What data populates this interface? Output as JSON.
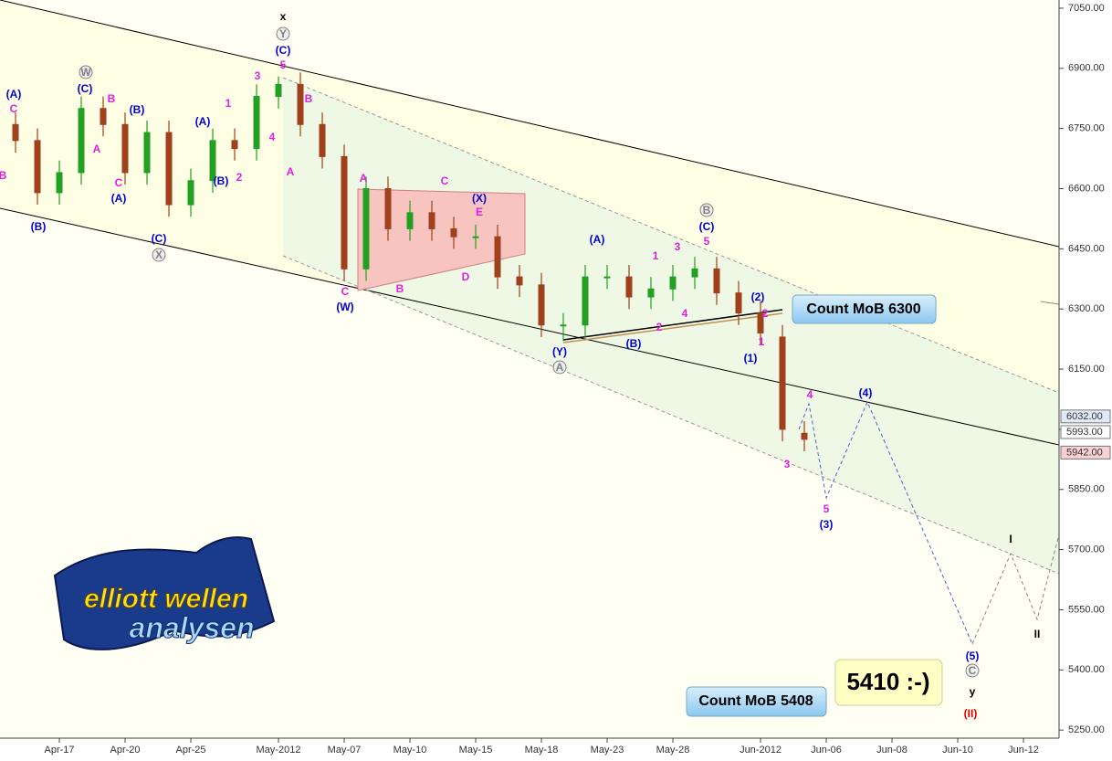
{
  "chart_data": {
    "type": "candlestick",
    "categories": [
      null,
      null,
      "Apr-17",
      null,
      null,
      "Apr-20",
      null,
      null,
      "Apr-25",
      null,
      null,
      null,
      "May-2012",
      null,
      null,
      "May-07",
      null,
      null,
      "May-10",
      null,
      null,
      "May-15",
      null,
      null,
      "May-18",
      null,
      null,
      "May-23",
      null,
      null,
      "May-28",
      null,
      null,
      null,
      "Jun-2012",
      null,
      null,
      "Jun-06",
      null,
      null,
      "Jun-08",
      null,
      null,
      "Jun-10",
      null,
      null,
      "Jun-12",
      null
    ],
    "open": [
      6760,
      6720,
      6590,
      6640,
      6800,
      6760,
      6640,
      6740,
      6560,
      6620,
      6720,
      6700,
      6830,
      6860,
      6760,
      6680,
      6400,
      6600,
      6500,
      6540,
      6500,
      6480,
      6480,
      6380,
      6360,
      6260,
      6260,
      6380,
      6380,
      6330,
      6350,
      6380,
      6400,
      6340,
      6290,
      6230,
      5990,
      null,
      null,
      null,
      null,
      null,
      null,
      null,
      null,
      null,
      null,
      null
    ],
    "high": [
      6790,
      6750,
      6670,
      6830,
      6830,
      6790,
      6770,
      6770,
      6650,
      6750,
      6750,
      6860,
      6880,
      6890,
      6790,
      6710,
      6630,
      6630,
      6570,
      6570,
      6530,
      6510,
      6510,
      6410,
      6390,
      6290,
      6410,
      6410,
      6410,
      6380,
      6410,
      6430,
      6430,
      6370,
      6320,
      6260,
      6020,
      null,
      null,
      null,
      null,
      null,
      null,
      null,
      null,
      null,
      null,
      null
    ],
    "low": [
      6690,
      6560,
      6560,
      6610,
      6730,
      6610,
      6610,
      6530,
      6530,
      6590,
      6670,
      6670,
      6800,
      6730,
      6650,
      6370,
      6370,
      6470,
      6470,
      6470,
      6450,
      6450,
      6350,
      6330,
      6230,
      6220,
      6230,
      6350,
      6300,
      6300,
      6320,
      6350,
      6310,
      6260,
      6210,
      5970,
      5945,
      null,
      null,
      null,
      null,
      null,
      null,
      null,
      null,
      null,
      null,
      null
    ],
    "close": [
      6720,
      6590,
      6640,
      6800,
      6760,
      6640,
      6740,
      6560,
      6620,
      6720,
      6700,
      6830,
      6860,
      6760,
      6680,
      6400,
      6600,
      6500,
      6540,
      6500,
      6480,
      6480,
      6380,
      6360,
      6260,
      6260,
      6380,
      6380,
      6330,
      6350,
      6380,
      6400,
      6340,
      6290,
      6240,
      6000,
      5975,
      null,
      null,
      null,
      null,
      null,
      null,
      null,
      null,
      null,
      null,
      null
    ],
    "up_color": "#22a022",
    "down_color": "#a0401c",
    "ylim": [
      5220,
      7080
    ],
    "yticks": [
      {
        "value": 5250,
        "label": "5250.00"
      },
      {
        "value": 5400,
        "label": "5400.00"
      },
      {
        "value": 5550,
        "label": "5550.00"
      },
      {
        "value": 5700,
        "label": "5700.00"
      },
      {
        "value": 5850,
        "label": "5850.00"
      },
      {
        "value": 6000,
        "label": "6000.00"
      },
      {
        "value": 6150,
        "label": "6150.00"
      },
      {
        "value": 6300,
        "label": "6300.00"
      },
      {
        "value": 6450,
        "label": "6450.00"
      },
      {
        "value": 6600,
        "label": "6600.00"
      },
      {
        "value": 6750,
        "label": "6750.00"
      },
      {
        "value": 6900,
        "label": "6900.00"
      },
      {
        "value": 7050,
        "label": "7050.00"
      }
    ],
    "price_markers": [
      {
        "value": 6032,
        "label": "6032.00",
        "color": "#dfeaf8"
      },
      {
        "value": 5993,
        "label": "5993.00",
        "color": "#ffffff"
      },
      {
        "value": 5942,
        "label": "5942.00",
        "color": "#f8d0d0"
      }
    ],
    "boxes": [
      "Count MoB 6300",
      "Count MoB 5408",
      "5410 :-)"
    ],
    "logo": [
      "elliott wellen",
      "analysen"
    ],
    "annotations": [
      {
        "text": "B",
        "color": "#e020e0"
      },
      {
        "text": "C",
        "color": "#e020e0"
      },
      {
        "text": "B",
        "color": "#e020e0"
      },
      {
        "text": "A",
        "color": "#e020e0"
      },
      {
        "text": "C",
        "color": "#e020e0"
      },
      {
        "text": "1",
        "color": "#e020e0"
      },
      {
        "text": "2",
        "color": "#e020e0"
      },
      {
        "text": "3",
        "color": "#e020e0"
      },
      {
        "text": "4",
        "color": "#e020e0"
      },
      {
        "text": "5",
        "color": "#e020e0"
      },
      {
        "text": "B",
        "color": "#e020e0"
      },
      {
        "text": "A",
        "color": "#e020e0"
      },
      {
        "text": "A",
        "color": "#e020e0"
      },
      {
        "text": "C",
        "color": "#e020e0"
      },
      {
        "text": "E",
        "color": "#e020e0"
      },
      {
        "text": "D",
        "color": "#e020e0"
      },
      {
        "text": "B",
        "color": "#e020e0"
      },
      {
        "text": "C",
        "color": "#e020e0"
      },
      {
        "text": "1",
        "color": "#e020e0"
      },
      {
        "text": "3",
        "color": "#e020e0"
      },
      {
        "text": "5",
        "color": "#e020e0"
      },
      {
        "text": "2",
        "color": "#e020e0"
      },
      {
        "text": "4",
        "color": "#e020e0"
      },
      {
        "text": "2",
        "color": "#e020e0"
      },
      {
        "text": "1",
        "color": "#e020e0"
      },
      {
        "text": "3",
        "color": "#e020e0"
      },
      {
        "text": "4",
        "color": "#e020e0"
      },
      {
        "text": "5",
        "color": "#e020e0"
      },
      {
        "text": "(A)",
        "color": "#0000cc"
      },
      {
        "text": "(C)",
        "color": "#0000cc"
      },
      {
        "text": "(B)",
        "color": "#0000cc"
      },
      {
        "text": "(A)",
        "color": "#0000cc"
      },
      {
        "text": "(B)",
        "color": "#0000cc"
      },
      {
        "text": "(C)",
        "color": "#0000cc"
      },
      {
        "text": "(A)",
        "color": "#0000cc"
      },
      {
        "text": "(B)",
        "color": "#0000cc"
      },
      {
        "text": "(C)",
        "color": "#0000cc"
      },
      {
        "text": "(X)",
        "color": "#0000cc"
      },
      {
        "text": "(W)",
        "color": "#0000cc"
      },
      {
        "text": "(Y)",
        "color": "#0000cc"
      },
      {
        "text": "(B)",
        "color": "#0000cc"
      },
      {
        "text": "(A)",
        "color": "#0000cc"
      },
      {
        "text": "(C)",
        "color": "#0000cc"
      },
      {
        "text": "(2)",
        "color": "#0000cc"
      },
      {
        "text": "(1)",
        "color": "#0000cc"
      },
      {
        "text": "(4)",
        "color": "#0000cc"
      },
      {
        "text": "(3)",
        "color": "#0000cc"
      },
      {
        "text": "(5)",
        "color": "#0000cc"
      },
      {
        "text": "x",
        "color": "#000000"
      },
      {
        "text": "I",
        "color": "#000000"
      },
      {
        "text": "II",
        "color": "#000000"
      },
      {
        "text": "y",
        "color": "#000000"
      },
      {
        "text": "(II)",
        "color": "#e00000"
      },
      {
        "text": "W",
        "color": "#808080",
        "circled": true
      },
      {
        "text": "X",
        "color": "#808080",
        "circled": true
      },
      {
        "text": "Y",
        "color": "#808080",
        "circled": true
      },
      {
        "text": "B",
        "color": "#808080",
        "circled": true
      },
      {
        "text": "A",
        "color": "#808080",
        "circled": true
      },
      {
        "text": "C",
        "color": "#808080",
        "circled": true
      }
    ]
  }
}
